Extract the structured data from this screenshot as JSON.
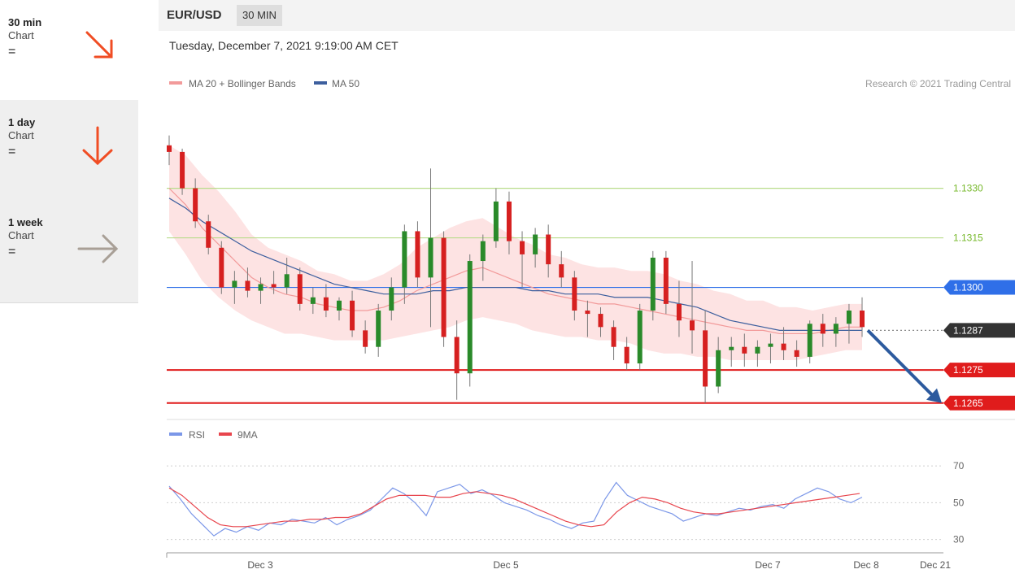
{
  "sidebar": {
    "items": [
      {
        "period": "30 min",
        "kind": "Chart",
        "eq": "=",
        "direction": "down-right",
        "color": "#f04d24"
      },
      {
        "period": "1 day",
        "kind": "Chart",
        "eq": "=",
        "direction": "down",
        "color": "#f04d24"
      },
      {
        "period": "1 week",
        "kind": "Chart",
        "eq": "=",
        "direction": "right",
        "color": "#a89f96"
      }
    ]
  },
  "header": {
    "pair": "EUR/USD",
    "timeframe": "30 MIN",
    "datetime": "Tuesday, December 7, 2021 9:19:00 AM CET"
  },
  "legend": {
    "bollinger": "MA 20 + Bollinger Bands",
    "ma50": "MA 50",
    "credit": "Research © 2021 Trading Central"
  },
  "rsi_legend": {
    "rsi": "RSI",
    "ma": "9MA"
  },
  "colors": {
    "bollinger": "#f29a9a",
    "band_fill": "#fde0e0",
    "ma50": "#3d5f9e",
    "rsi": "#7b97e8",
    "rsi_ma": "#e8454d",
    "target_green": "#76b82a",
    "support_red": "#e01c1c",
    "pivot_blue": "#2f6fe8",
    "price": "#333333",
    "candle_up": "#2a8a2a",
    "candle_down": "#d62020",
    "forecast_arrow": "#2c5a9e"
  },
  "chart_data": [
    {
      "type": "candlestick",
      "title": "EUR/USD",
      "timeframe": "30 MIN",
      "ylim": [
        1.1262,
        1.1355
      ],
      "x_ticks": [
        "Dec 3",
        "Dec 5",
        "Dec 7",
        "Dec 8",
        "Dec 21"
      ],
      "price_levels": [
        {
          "label": "1.1330",
          "value": 1.133,
          "kind": "resistance"
        },
        {
          "label": "1.1315",
          "value": 1.1315,
          "kind": "resistance"
        },
        {
          "label": "1.1300",
          "value": 1.13,
          "kind": "pivot"
        },
        {
          "label": "1.1287",
          "value": 1.1287,
          "kind": "last-price"
        },
        {
          "label": "1.1275",
          "value": 1.1275,
          "kind": "support"
        },
        {
          "label": "1.1265",
          "value": 1.1265,
          "kind": "support"
        }
      ],
      "forecast": {
        "from": 1.1287,
        "to": 1.1265,
        "direction": "down"
      },
      "series": [
        {
          "name": "MA 20 + Bollinger Bands",
          "values": [
            1.133,
            1.1325,
            1.1318,
            1.1313,
            1.1308,
            1.1303,
            1.13,
            1.1298,
            1.1297,
            1.1295,
            1.1294,
            1.1293,
            1.1293,
            1.1294,
            1.1296,
            1.1299,
            1.1301,
            1.1303,
            1.1305,
            1.1306,
            1.1304,
            1.1302,
            1.13,
            1.1298,
            1.1297,
            1.1296,
            1.1295,
            1.1295,
            1.1294,
            1.1293,
            1.1292,
            1.1291,
            1.129,
            1.1289,
            1.1288,
            1.1287,
            1.1287,
            1.1286,
            1.1286,
            1.1286,
            1.1287,
            1.1288,
            1.1288
          ]
        },
        {
          "name": "MA 50",
          "values": [
            1.1327,
            1.1324,
            1.132,
            1.1317,
            1.1314,
            1.1311,
            1.1309,
            1.1307,
            1.1305,
            1.1303,
            1.1301,
            1.13,
            1.1299,
            1.1298,
            1.1298,
            1.1298,
            1.1299,
            1.1299,
            1.13,
            1.13,
            1.13,
            1.13,
            1.1299,
            1.1299,
            1.1298,
            1.1298,
            1.1298,
            1.1297,
            1.1297,
            1.1297,
            1.1296,
            1.1295,
            1.1294,
            1.1292,
            1.129,
            1.1289,
            1.1288,
            1.1287,
            1.1287,
            1.1287,
            1.1287,
            1.1287,
            1.1287
          ]
        }
      ],
      "candles": [
        [
          1.1343,
          1.1346,
          1.1337,
          1.1341
        ],
        [
          1.1341,
          1.1342,
          1.1328,
          1.133
        ],
        [
          1.133,
          1.1333,
          1.1318,
          1.132
        ],
        [
          1.132,
          1.1322,
          1.131,
          1.1312
        ],
        [
          1.1312,
          1.1314,
          1.1298,
          1.13
        ],
        [
          1.13,
          1.1305,
          1.1295,
          1.1302
        ],
        [
          1.1302,
          1.1306,
          1.1297,
          1.1299
        ],
        [
          1.1299,
          1.1303,
          1.1295,
          1.1301
        ],
        [
          1.1301,
          1.1305,
          1.1298,
          1.13
        ],
        [
          1.13,
          1.1309,
          1.1298,
          1.1304
        ],
        [
          1.1304,
          1.1306,
          1.1293,
          1.1295
        ],
        [
          1.1295,
          1.13,
          1.1292,
          1.1297
        ],
        [
          1.1297,
          1.1301,
          1.1291,
          1.1293
        ],
        [
          1.1293,
          1.1297,
          1.129,
          1.1296
        ],
        [
          1.1296,
          1.1299,
          1.1285,
          1.1287
        ],
        [
          1.1287,
          1.129,
          1.128,
          1.1282
        ],
        [
          1.1282,
          1.1295,
          1.1279,
          1.1293
        ],
        [
          1.1293,
          1.1303,
          1.129,
          1.13
        ],
        [
          1.13,
          1.1319,
          1.1295,
          1.1317
        ],
        [
          1.1317,
          1.132,
          1.13,
          1.1303
        ],
        [
          1.1303,
          1.1336,
          1.1288,
          1.1315
        ],
        [
          1.1315,
          1.1317,
          1.1282,
          1.1285
        ],
        [
          1.1285,
          1.129,
          1.1266,
          1.1274
        ],
        [
          1.1274,
          1.131,
          1.127,
          1.1308
        ],
        [
          1.1308,
          1.1316,
          1.1302,
          1.1314
        ],
        [
          1.1314,
          1.133,
          1.1312,
          1.1326
        ],
        [
          1.1326,
          1.1329,
          1.131,
          1.1314
        ],
        [
          1.1314,
          1.1317,
          1.13,
          1.131
        ],
        [
          1.131,
          1.1318,
          1.1306,
          1.1316
        ],
        [
          1.1316,
          1.1319,
          1.1303,
          1.1307
        ],
        [
          1.1307,
          1.1311,
          1.13,
          1.1303
        ],
        [
          1.1303,
          1.1305,
          1.129,
          1.1293
        ],
        [
          1.1293,
          1.1296,
          1.1285,
          1.1292
        ],
        [
          1.1292,
          1.1294,
          1.1285,
          1.1288
        ],
        [
          1.1288,
          1.129,
          1.1278,
          1.1282
        ],
        [
          1.1282,
          1.1285,
          1.1275,
          1.1277
        ],
        [
          1.1277,
          1.1295,
          1.1275,
          1.1293
        ],
        [
          1.1293,
          1.1311,
          1.129,
          1.1309
        ],
        [
          1.1309,
          1.1311,
          1.1292,
          1.1295
        ],
        [
          1.1295,
          1.1302,
          1.1285,
          1.129
        ],
        [
          1.129,
          1.1308,
          1.128,
          1.1287
        ],
        [
          1.1287,
          1.1293,
          1.1265,
          1.127
        ],
        [
          1.127,
          1.1285,
          1.1268,
          1.1281
        ],
        [
          1.1281,
          1.1285,
          1.1276,
          1.1282
        ],
        [
          1.1282,
          1.1286,
          1.1276,
          1.128
        ],
        [
          1.128,
          1.1284,
          1.1276,
          1.1282
        ],
        [
          1.1282,
          1.1286,
          1.1277,
          1.1283
        ],
        [
          1.1283,
          1.1288,
          1.1278,
          1.1281
        ],
        [
          1.1281,
          1.1284,
          1.1276,
          1.1279
        ],
        [
          1.1279,
          1.129,
          1.1277,
          1.1289
        ],
        [
          1.1289,
          1.1292,
          1.1282,
          1.1286
        ],
        [
          1.1286,
          1.1291,
          1.1282,
          1.1289
        ],
        [
          1.1289,
          1.1295,
          1.1283,
          1.1293
        ],
        [
          1.1293,
          1.1297,
          1.1285,
          1.1288
        ]
      ]
    },
    {
      "type": "line",
      "ylim": [
        25,
        78
      ],
      "y_ticks": [
        "70",
        "50",
        "30"
      ],
      "series": [
        {
          "name": "RSI",
          "values": [
            59,
            52,
            44,
            38,
            32,
            36,
            34,
            37,
            35,
            39,
            38,
            41,
            40,
            39,
            42,
            38,
            41,
            43,
            46,
            52,
            58,
            55,
            50,
            43,
            56,
            58,
            60,
            55,
            57,
            54,
            50,
            48,
            46,
            43,
            41,
            38,
            36,
            39,
            40,
            52,
            61,
            54,
            51,
            48,
            46,
            44,
            40,
            42,
            44,
            43,
            45,
            47,
            46,
            48,
            49,
            47,
            52,
            55,
            58,
            56,
            52,
            50,
            53
          ]
        },
        {
          "name": "9MA",
          "values": [
            58,
            54,
            48,
            42,
            38,
            37,
            37,
            38,
            39,
            40,
            40,
            41,
            41,
            42,
            42,
            44,
            48,
            52,
            54,
            54,
            54,
            53,
            53,
            55,
            56,
            55,
            54,
            52,
            49,
            46,
            43,
            40,
            38,
            37,
            38,
            45,
            50,
            53,
            52,
            50,
            47,
            45,
            44,
            44,
            45,
            46,
            47,
            48,
            49,
            50,
            51,
            52,
            53,
            54,
            55
          ]
        }
      ]
    }
  ]
}
